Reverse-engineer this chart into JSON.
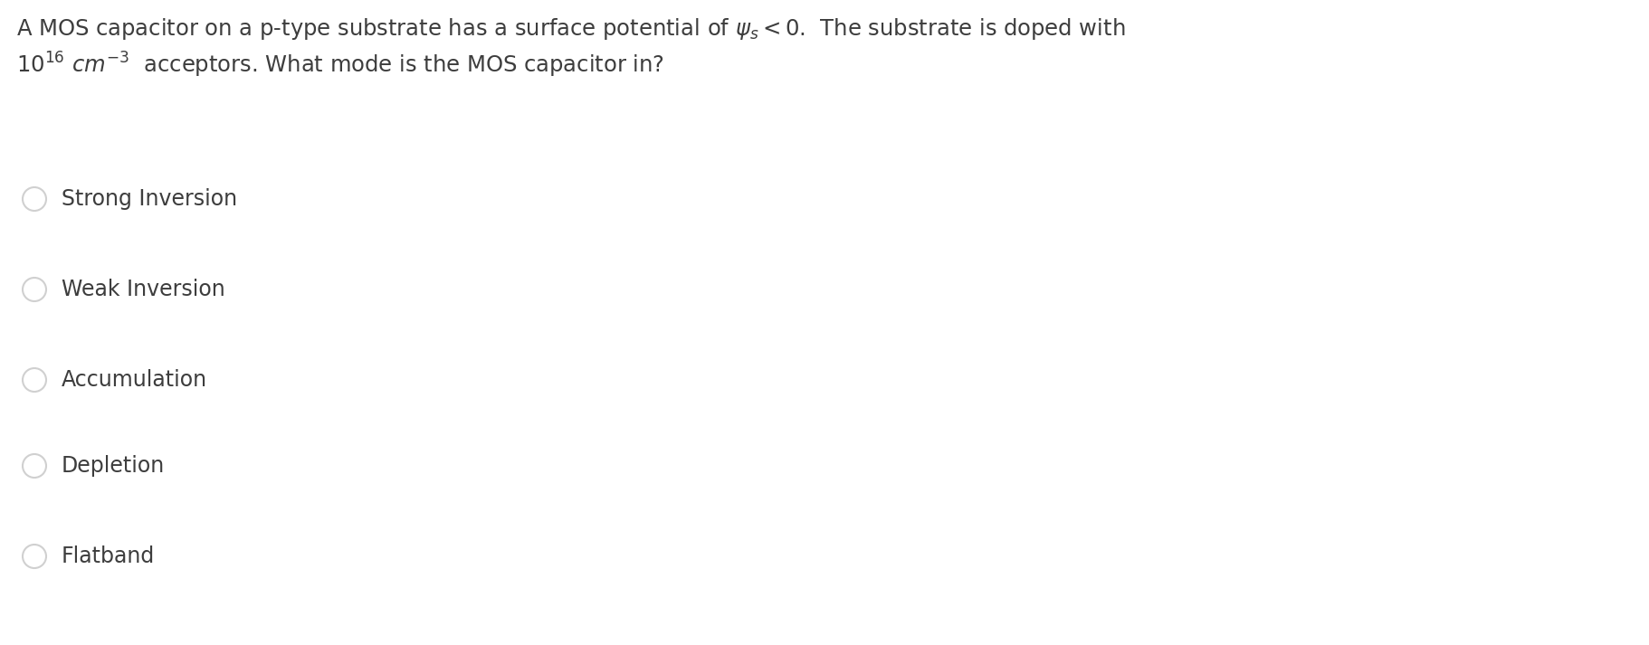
{
  "background_color": "#ffffff",
  "text_color": "#3d3d3d",
  "options": [
    "Strong Inversion",
    "Weak Inversion",
    "Accumulation",
    "Depletion",
    "Flatband"
  ],
  "circle_color": "#d0d0d0",
  "fig_width": 18.22,
  "fig_height": 7.13,
  "dpi": 100
}
